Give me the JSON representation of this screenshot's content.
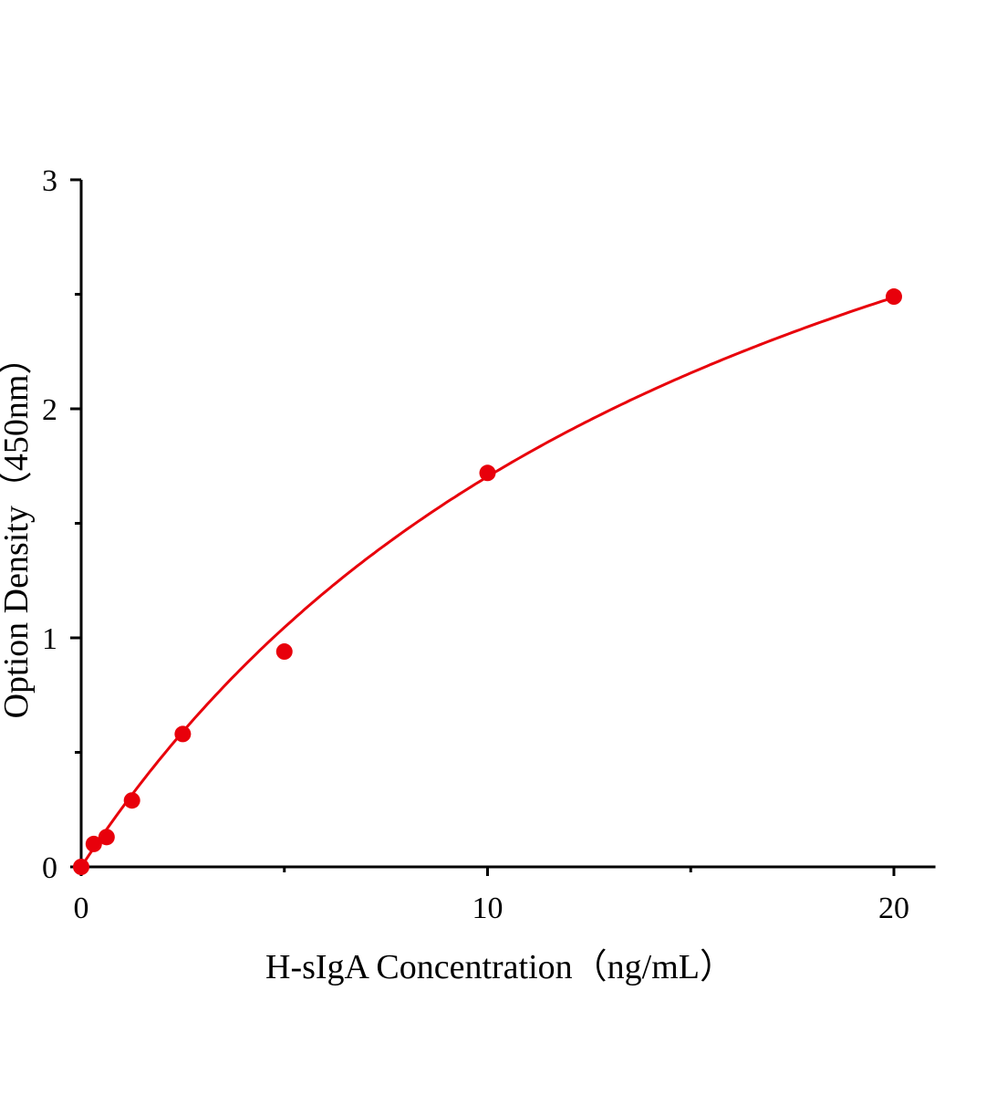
{
  "chart_data": {
    "type": "scatter",
    "title": "",
    "xlabel": "H-sIgA Concentration（ng/mL）",
    "ylabel": "Option Density（450nm）",
    "xlim": [
      0,
      21
    ],
    "ylim": [
      0,
      3
    ],
    "x_ticks": [
      0,
      10,
      20
    ],
    "x_minor_ticks": [
      5,
      15
    ],
    "y_ticks": [
      0,
      1,
      2,
      3
    ],
    "y_minor_ticks": [
      0.5,
      1.5,
      2.5
    ],
    "grid": false,
    "color": "#e8000b",
    "series": [
      {
        "x": [
          0,
          0.31,
          0.625,
          1.25,
          2.5,
          5,
          10,
          20
        ],
        "y": [
          0,
          0.1,
          0.13,
          0.29,
          0.58,
          0.94,
          1.72,
          2.49
        ],
        "fit_curve": true
      }
    ]
  }
}
